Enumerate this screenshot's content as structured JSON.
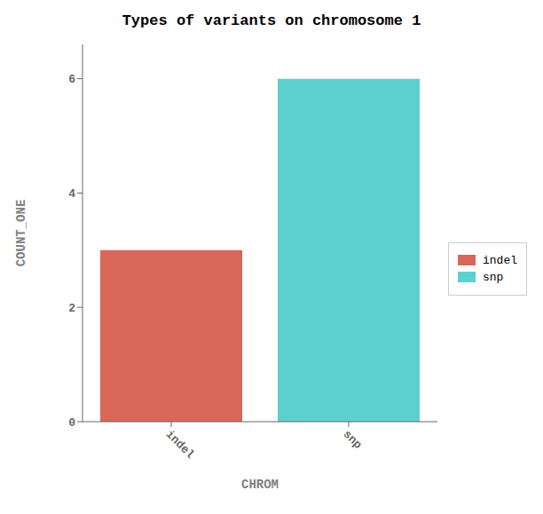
{
  "chart_data": {
    "type": "bar",
    "title": "Types of variants on chromosome 1",
    "xlabel": "CHROM",
    "ylabel": "COUNT_ONE",
    "categories": [
      "indel",
      "snp"
    ],
    "values": [
      3,
      6
    ],
    "colors": [
      "#d9675a",
      "#5ecfcf"
    ],
    "ylim": [
      0,
      6.6
    ],
    "yticks": [
      0,
      2,
      4,
      6
    ],
    "grid": false,
    "legend": "right"
  }
}
